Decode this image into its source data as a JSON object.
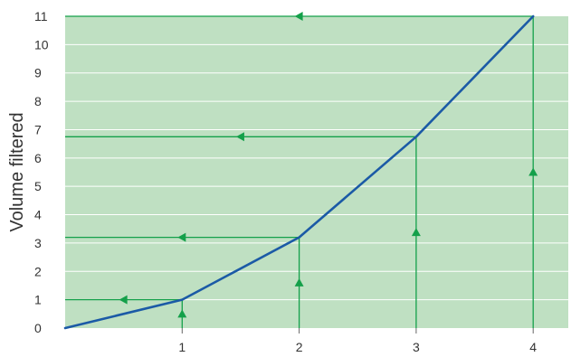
{
  "chart_data": {
    "type": "line",
    "ylabel": "Volume filtered",
    "xlabel": "",
    "xlim": [
      0,
      4.3
    ],
    "ylim": [
      0,
      11
    ],
    "x_ticks": [
      1,
      2,
      3,
      4
    ],
    "y_ticks": [
      0,
      1,
      2,
      3,
      4,
      5,
      6,
      7,
      8,
      9,
      10,
      11
    ],
    "grid": "horizontal",
    "series": [
      {
        "x": [
          0,
          1,
          2,
          3,
          4
        ],
        "y": [
          0,
          1.0,
          3.2,
          6.75,
          11
        ]
      }
    ],
    "projection_points": [
      {
        "x": 1,
        "y": 1.0
      },
      {
        "x": 2,
        "y": 3.2
      },
      {
        "x": 3,
        "y": 6.75
      },
      {
        "x": 4,
        "y": 11
      }
    ],
    "colors": {
      "plot_background": "#bfe0c2",
      "gridline": "#ffffff",
      "line": "#1b5aa6",
      "guide": "#14a04a",
      "arrow": "#14a04a",
      "text": "#333333"
    }
  }
}
